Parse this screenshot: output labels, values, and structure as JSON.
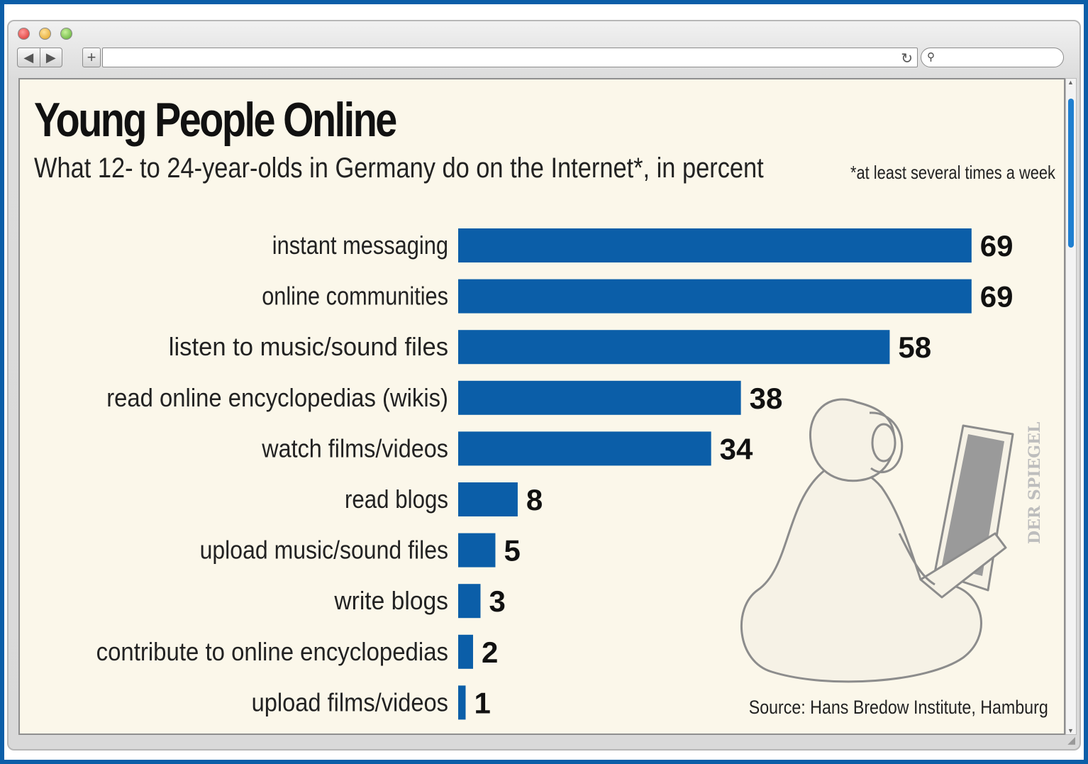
{
  "chart_data": {
    "type": "bar",
    "orientation": "horizontal",
    "title": "Young People Online",
    "subtitle": "What 12- to 24-year-olds in Germany do on the Internet*, in percent",
    "footnote": "*at least several times a week",
    "source": "Source: Hans Bredow Institute, Hamburg",
    "categories": [
      "instant messaging",
      "online communities",
      "listen to music/sound files",
      "read online encyclopedias (wikis)",
      "watch films/videos",
      "read blogs",
      "upload music/sound files",
      "write blogs",
      "contribute to online encyclopedias",
      "upload films/videos"
    ],
    "values": [
      69,
      69,
      58,
      38,
      34,
      8,
      5,
      3,
      2,
      1
    ],
    "xlim": [
      0,
      100
    ],
    "grid": false,
    "legend": "none",
    "bar_color": "#0b5ea8"
  },
  "watermark": "DER SPIEGEL",
  "colors": {
    "frame": "#0b5ea8",
    "background": "#fbf7ea",
    "text": "#111111"
  }
}
